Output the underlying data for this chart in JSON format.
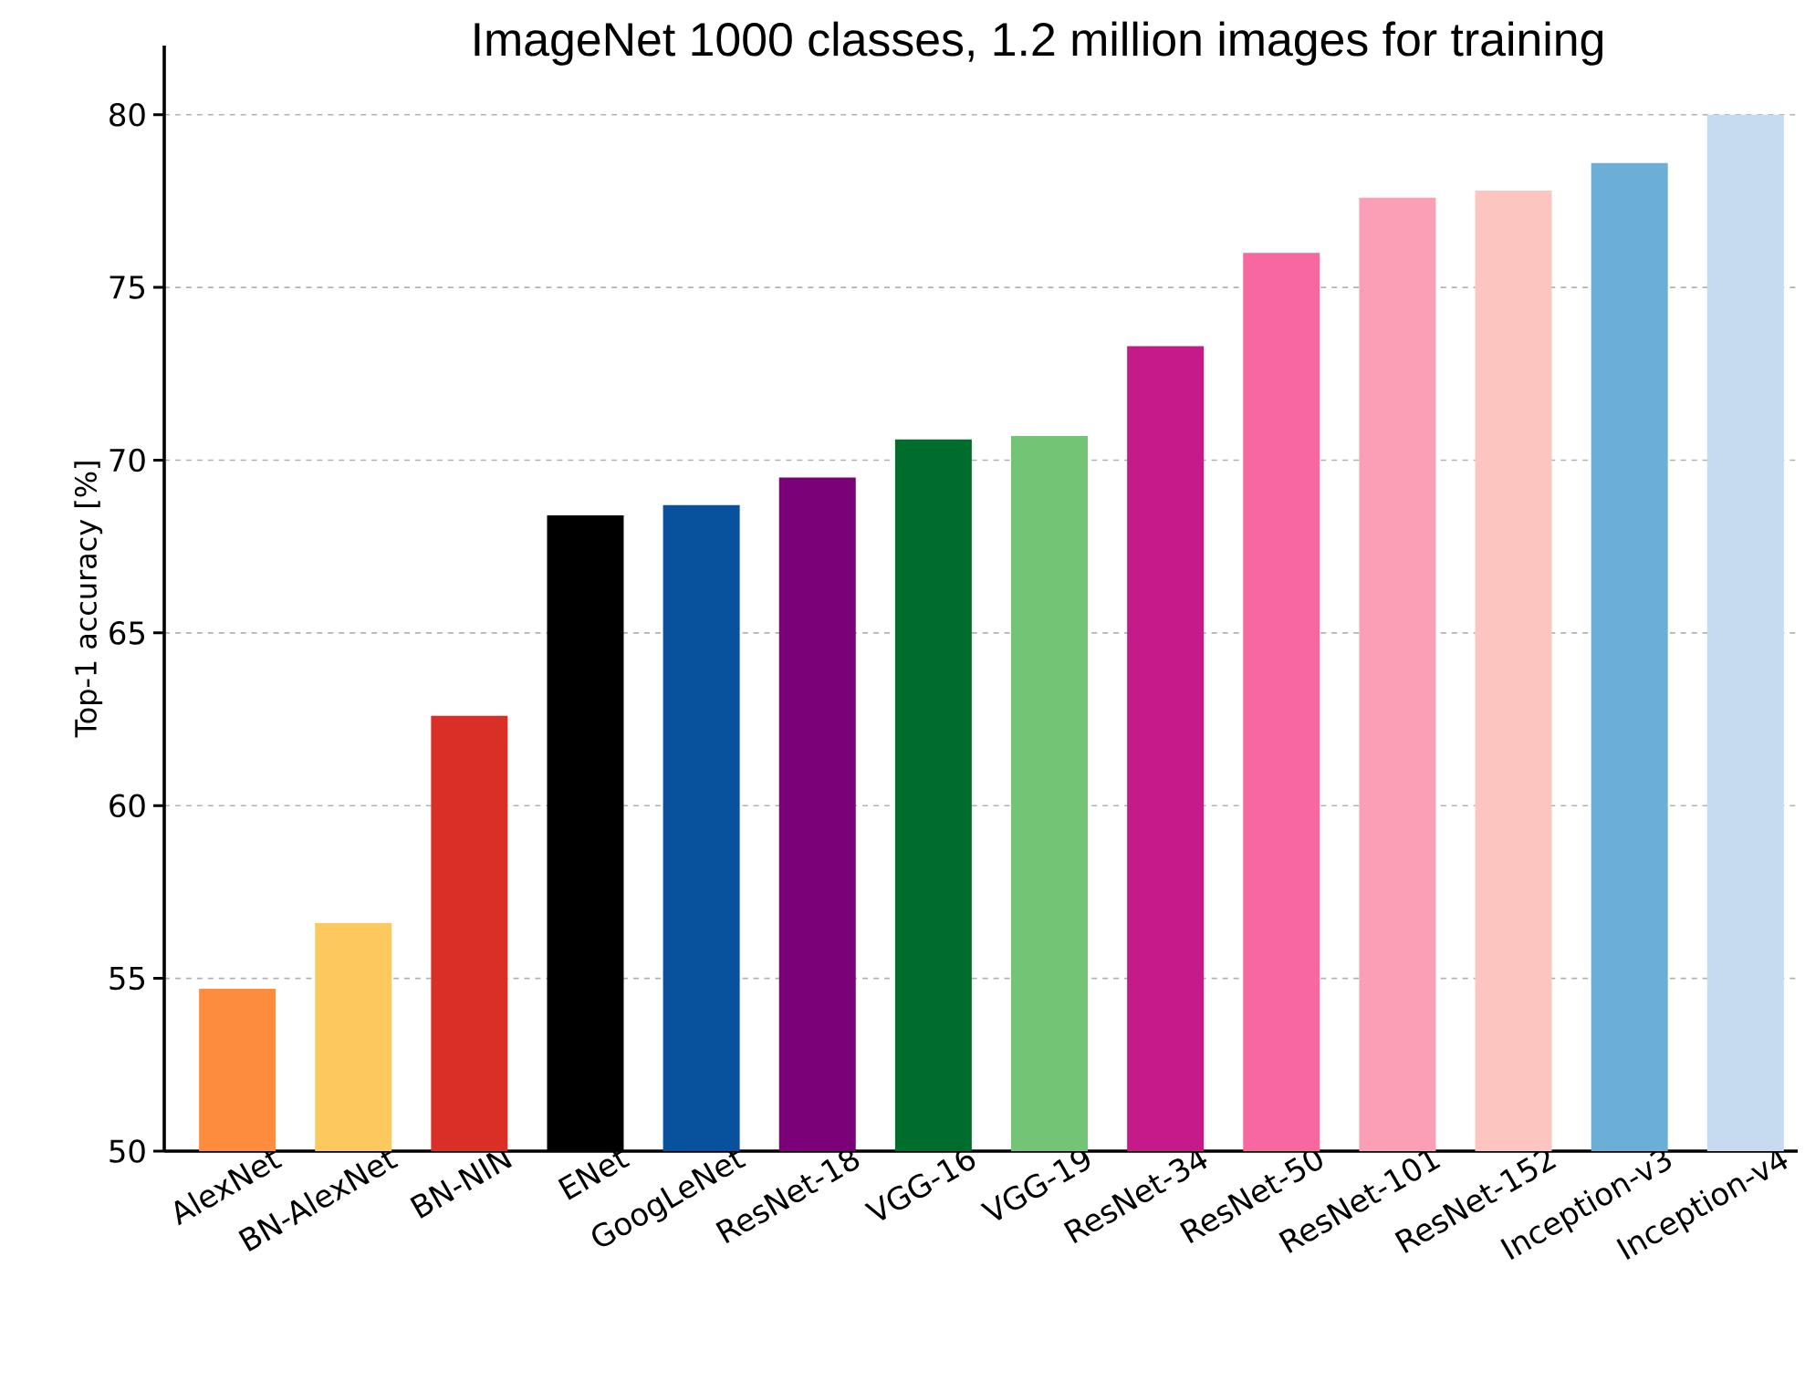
{
  "chart_data": {
    "type": "bar",
    "title": "ImageNet 1000 classes, 1.2 million images for training",
    "ylabel": "Top-1 accuracy [%]",
    "categories": [
      "AlexNet",
      "BN-AlexNet",
      "BN-NIN",
      "ENet",
      "GoogLeNet",
      "ResNet-18",
      "VGG-16",
      "VGG-19",
      "ResNet-34",
      "ResNet-50",
      "ResNet-101",
      "ResNet-152",
      "Inception-v3",
      "Inception-v4"
    ],
    "values": [
      54.7,
      56.6,
      62.6,
      68.4,
      68.7,
      69.5,
      70.6,
      70.7,
      73.3,
      76.0,
      77.6,
      77.8,
      78.6,
      80.0
    ],
    "colors": [
      "#fd8d3c",
      "#fdc95e",
      "#d92f27",
      "#000000",
      "#08519c",
      "#7a0177",
      "#006d2c",
      "#74c476",
      "#c51b8a",
      "#f768a1",
      "#fa9fb5",
      "#fcc5c0",
      "#6baed6",
      "#c6dbef"
    ],
    "ylim": [
      50,
      82
    ],
    "yticks": [
      50,
      55,
      60,
      65,
      70,
      75,
      80
    ],
    "grid": "y"
  }
}
